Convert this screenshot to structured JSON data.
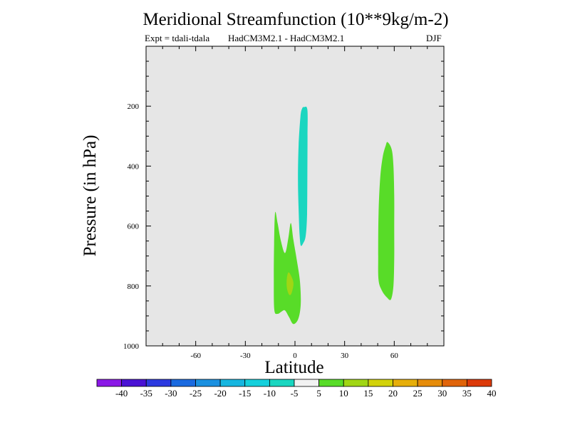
{
  "title": "Meridional Streamfunction (10**9kg/m-2)",
  "subtitle_left": "Expt = tdali-tdala",
  "subtitle_center": "HadCM3M2.1 - HadCM3M2.1",
  "subtitle_right": "DJF",
  "chart_data": {
    "type": "contour",
    "title": "Meridional Streamfunction (10**9kg/m-2)",
    "xlabel": "Latitude",
    "ylabel": "Pressure (in hPa)",
    "xlim": [
      -90,
      90
    ],
    "ylim": [
      1000,
      0
    ],
    "xticks": [
      -60,
      -30,
      0,
      30,
      60
    ],
    "yticks": [
      200,
      400,
      600,
      800,
      1000
    ],
    "plot_background": "#e6e6e6",
    "regions": [
      {
        "name": "negative-cell",
        "level": "-10 to -5",
        "color": "#1ad6c0",
        "outline": [
          [
            5.5,
            203
          ],
          [
            7.5,
            212
          ],
          [
            7.6,
            300
          ],
          [
            7.5,
            420
          ],
          [
            7.3,
            560
          ],
          [
            6.5,
            632
          ],
          [
            5,
            657
          ],
          [
            3.5,
            665
          ],
          [
            2.8,
            630
          ],
          [
            2.3,
            560
          ],
          [
            1.8,
            450
          ],
          [
            2.2,
            330
          ],
          [
            3.3,
            235
          ],
          [
            4.3,
            208
          ]
        ]
      },
      {
        "name": "positive-cell-lower",
        "level": "5 to 10",
        "color": "#58dc28",
        "outline": [
          [
            -12,
            555
          ],
          [
            -10.5,
            590
          ],
          [
            -8.5,
            650
          ],
          [
            -6,
            690
          ],
          [
            -4,
            640
          ],
          [
            -2.5,
            590
          ],
          [
            -1,
            645
          ],
          [
            1,
            710
          ],
          [
            3,
            785
          ],
          [
            3.5,
            860
          ],
          [
            2,
            910
          ],
          [
            -1,
            927
          ],
          [
            -3.5,
            905
          ],
          [
            -6,
            882
          ],
          [
            -8,
            885
          ],
          [
            -10.5,
            893
          ],
          [
            -12.5,
            880
          ],
          [
            -12.8,
            780
          ],
          [
            -12.6,
            660
          ]
        ]
      },
      {
        "name": "positive-max",
        "level": "10 to 15",
        "color": "#a0d614",
        "outline": [
          [
            -4,
            755
          ],
          [
            -2.2,
            768
          ],
          [
            -0.9,
            792
          ],
          [
            -2,
            823
          ],
          [
            -3.4,
            830
          ],
          [
            -4.8,
            810
          ],
          [
            -5,
            780
          ]
        ]
      },
      {
        "name": "positive-cell-upper",
        "level": "5 to 10",
        "color": "#58dc28",
        "outline": [
          [
            56,
            320
          ],
          [
            58.5,
            345
          ],
          [
            59.5,
            400
          ],
          [
            60,
            500
          ],
          [
            60,
            600
          ],
          [
            60,
            710
          ],
          [
            59.5,
            800
          ],
          [
            58,
            845
          ],
          [
            55.5,
            838
          ],
          [
            52.5,
            815
          ],
          [
            50.5,
            780
          ],
          [
            50.3,
            700
          ],
          [
            50.5,
            560
          ],
          [
            51.5,
            440
          ],
          [
            53,
            370
          ],
          [
            54.8,
            332
          ]
        ]
      }
    ],
    "colorbar": {
      "labels": [
        "-40",
        "-35",
        "-30",
        "-25",
        "-20",
        "-15",
        "-10",
        "-5",
        "5",
        "10",
        "15",
        "20",
        "25",
        "30",
        "35",
        "40"
      ],
      "colors": [
        "#8a18e6",
        "#4a12d4",
        "#2c3ae0",
        "#1a6ae0",
        "#1a90e0",
        "#16b6e0",
        "#14d0dc",
        "#1ad6c0",
        "#f2f2f2",
        "#58dc28",
        "#a0d614",
        "#d2d20a",
        "#e6ae0a",
        "#e68c0a",
        "#e0640a",
        "#dc3a0a"
      ]
    }
  }
}
